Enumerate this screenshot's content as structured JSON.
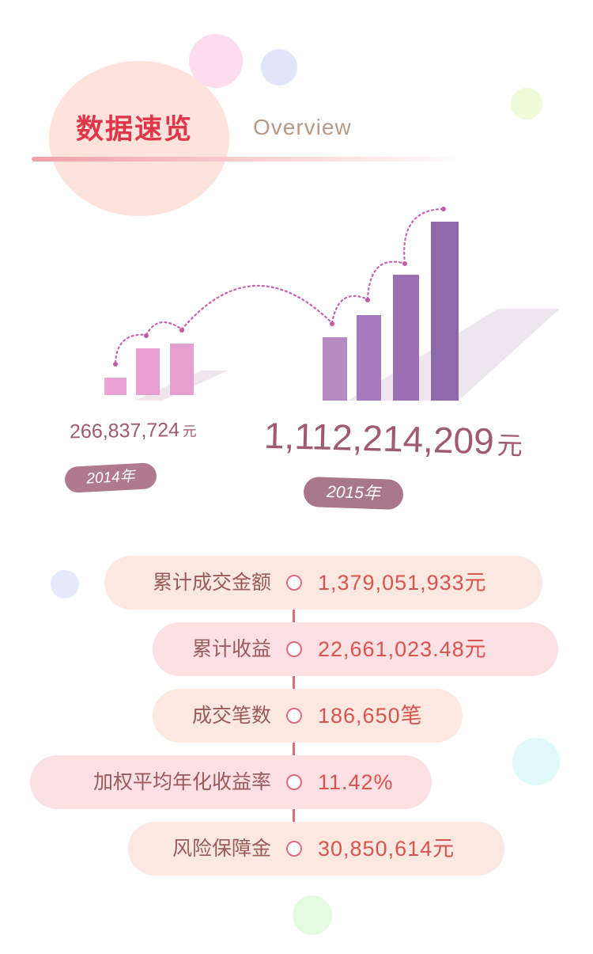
{
  "header": {
    "title": "数据速览",
    "subtitle": "Overview"
  },
  "chart_data": {
    "type": "bar",
    "categories": [
      "2014年",
      "2015年"
    ],
    "values": [
      266837724,
      1112214209
    ],
    "value_labels": [
      "266,837,724",
      "1,112,214,209"
    ],
    "unit": "元",
    "colors": {
      "2014": "#e9a0d0",
      "2015": "#9b6fb0"
    }
  },
  "stats": [
    {
      "label": "累计成交金额",
      "value": "1,379,051,933元"
    },
    {
      "label": "累计收益",
      "value": "22,661,023.48元"
    },
    {
      "label": "成交笔数",
      "value": "186,650笔"
    },
    {
      "label": "加权平均年化收益率",
      "value": "11.42%"
    },
    {
      "label": "风险保障金",
      "value": "30,850,614元"
    }
  ],
  "colors": {
    "accent": "#e0364a",
    "timeline": "#e26a7a",
    "pill_beige": "#fbe8e0",
    "pill_pink": "#fde0e4"
  }
}
